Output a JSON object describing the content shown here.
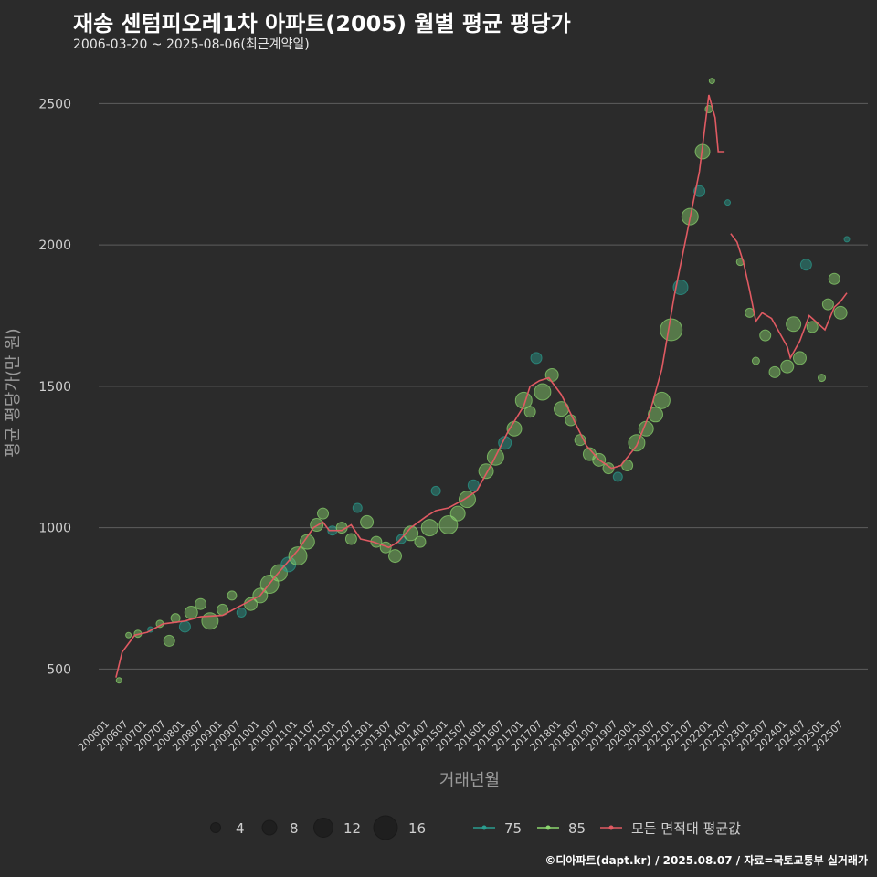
{
  "title": "재송 센텀피오레1차 아파트(2005) 월별 평균 평당가",
  "subtitle": "2006-03-20 ~ 2025-08-06(최근계약일)",
  "footer": "©디아파트(dapt.kr) / 2025.08.07 / 자료=국토교통부 실거래가",
  "colors": {
    "background": "#2b2b2b",
    "grid": "#5e5e5e",
    "s75": "#2a9d8f",
    "s85": "#8bd66e",
    "avg": "#e05a62"
  },
  "chart_data": {
    "type": "line",
    "xlabel": "거래년월",
    "ylabel": "평균 평당가(만 원)",
    "ylim": [
      330,
      2640
    ],
    "yticks": [
      500,
      1000,
      1500,
      2000,
      2500
    ],
    "x_range": [
      "2006-01",
      "2025-08"
    ],
    "xticks": [
      "200601",
      "200607",
      "200701",
      "200707",
      "200801",
      "200807",
      "200901",
      "200907",
      "201001",
      "201007",
      "201101",
      "201107",
      "201201",
      "201207",
      "201301",
      "201307",
      "201401",
      "201407",
      "201501",
      "201507",
      "201601",
      "201607",
      "201701",
      "201707",
      "201801",
      "201807",
      "201901",
      "201907",
      "202001",
      "202007",
      "202101",
      "202107",
      "202201",
      "202207",
      "202301",
      "202307",
      "202401",
      "202407",
      "202501",
      "202507"
    ],
    "legend": {
      "size_label": "",
      "sizes": [
        {
          "value": 4,
          "label": "4"
        },
        {
          "value": 8,
          "label": "8"
        },
        {
          "value": 12,
          "label": "12"
        },
        {
          "value": 16,
          "label": "16"
        }
      ],
      "series": [
        {
          "key": "s75",
          "label": "75"
        },
        {
          "key": "s85",
          "label": "85"
        },
        {
          "key": "avg",
          "label": "모든 면적대 평균값"
        }
      ]
    },
    "series": [
      {
        "name": "모든 면적대 평균값",
        "key": "avg",
        "points": [
          [
            "2006-03",
            470
          ],
          [
            "2006-05",
            560
          ],
          [
            "2006-07",
            590
          ],
          [
            "2006-09",
            620
          ],
          [
            "2007-01",
            630
          ],
          [
            "2007-06",
            660
          ],
          [
            "2008-01",
            670
          ],
          [
            "2008-06",
            685
          ],
          [
            "2009-01",
            690
          ],
          [
            "2009-06",
            720
          ],
          [
            "2010-01",
            760
          ],
          [
            "2010-06",
            830
          ],
          [
            "2011-01",
            920
          ],
          [
            "2011-06",
            1000
          ],
          [
            "2011-09",
            1020
          ],
          [
            "2011-11",
            990
          ],
          [
            "2012-03",
            990
          ],
          [
            "2012-06",
            1010
          ],
          [
            "2012-09",
            960
          ],
          [
            "2013-01",
            950
          ],
          [
            "2013-06",
            930
          ],
          [
            "2013-09",
            950
          ],
          [
            "2014-01",
            1000
          ],
          [
            "2014-06",
            1040
          ],
          [
            "2014-09",
            1060
          ],
          [
            "2015-01",
            1070
          ],
          [
            "2015-06",
            1100
          ],
          [
            "2015-10",
            1130
          ],
          [
            "2016-03",
            1230
          ],
          [
            "2016-08",
            1340
          ],
          [
            "2017-01",
            1430
          ],
          [
            "2017-03",
            1500
          ],
          [
            "2017-06",
            1520
          ],
          [
            "2017-09",
            1530
          ],
          [
            "2018-01",
            1470
          ],
          [
            "2018-05",
            1380
          ],
          [
            "2018-09",
            1290
          ],
          [
            "2019-01",
            1240
          ],
          [
            "2019-05",
            1210
          ],
          [
            "2019-08",
            1220
          ],
          [
            "2020-01",
            1290
          ],
          [
            "2020-05",
            1400
          ],
          [
            "2020-09",
            1560
          ],
          [
            "2021-01",
            1820
          ],
          [
            "2021-05",
            2040
          ],
          [
            "2021-09",
            2260
          ],
          [
            "2021-12",
            2530
          ],
          [
            "2022-02",
            2450
          ],
          [
            "2022-03",
            2330
          ],
          [
            "2022-05",
            2330
          ]
        ]
      },
      {
        "name": "모든 면적대 평균값 (2)",
        "key": "avg",
        "points": [
          [
            "2022-07",
            2040
          ],
          [
            "2022-09",
            2010
          ],
          [
            "2022-11",
            1940
          ],
          [
            "2023-01",
            1840
          ],
          [
            "2023-03",
            1730
          ],
          [
            "2023-05",
            1760
          ],
          [
            "2023-08",
            1740
          ],
          [
            "2023-10",
            1700
          ],
          [
            "2024-01",
            1640
          ],
          [
            "2024-02",
            1600
          ],
          [
            "2024-05",
            1660
          ],
          [
            "2024-08",
            1750
          ],
          [
            "2024-11",
            1720
          ],
          [
            "2025-01",
            1700
          ],
          [
            "2025-04",
            1780
          ],
          [
            "2025-06",
            1800
          ],
          [
            "2025-08",
            1830
          ]
        ]
      }
    ],
    "scatter": [
      [
        "2006-04",
        460,
        3,
        "s85"
      ],
      [
        "2006-07",
        620,
        3,
        "s85"
      ],
      [
        "2006-10",
        625,
        4,
        "s85"
      ],
      [
        "2007-02",
        640,
        3,
        "s75"
      ],
      [
        "2007-05",
        660,
        4,
        "s85"
      ],
      [
        "2007-08",
        600,
        6,
        "s85"
      ],
      [
        "2007-10",
        680,
        5,
        "s85"
      ],
      [
        "2008-01",
        650,
        6,
        "s75"
      ],
      [
        "2008-03",
        700,
        7,
        "s85"
      ],
      [
        "2008-06",
        730,
        6,
        "s85"
      ],
      [
        "2008-09",
        670,
        9,
        "s85"
      ],
      [
        "2009-01",
        710,
        6,
        "s85"
      ],
      [
        "2009-04",
        760,
        5,
        "s85"
      ],
      [
        "2009-07",
        700,
        5,
        "s75"
      ],
      [
        "2009-10",
        730,
        7,
        "s85"
      ],
      [
        "2010-01",
        760,
        8,
        "s85"
      ],
      [
        "2010-04",
        800,
        10,
        "s85"
      ],
      [
        "2010-07",
        840,
        9,
        "s85"
      ],
      [
        "2010-10",
        870,
        8,
        "s75"
      ],
      [
        "2011-01",
        900,
        10,
        "s85"
      ],
      [
        "2011-04",
        950,
        8,
        "s85"
      ],
      [
        "2011-07",
        1010,
        7,
        "s85"
      ],
      [
        "2011-09",
        1050,
        6,
        "s85"
      ],
      [
        "2011-12",
        990,
        5,
        "s75"
      ],
      [
        "2012-03",
        1000,
        6,
        "s85"
      ],
      [
        "2012-06",
        960,
        6,
        "s85"
      ],
      [
        "2012-08",
        1070,
        5,
        "s75"
      ],
      [
        "2012-11",
        1020,
        7,
        "s85"
      ],
      [
        "2013-02",
        950,
        6,
        "s85"
      ],
      [
        "2013-05",
        930,
        6,
        "s85"
      ],
      [
        "2013-08",
        900,
        7,
        "s85"
      ],
      [
        "2013-10",
        960,
        5,
        "s75"
      ],
      [
        "2014-01",
        980,
        8,
        "s85"
      ],
      [
        "2014-04",
        950,
        6,
        "s85"
      ],
      [
        "2014-07",
        1000,
        9,
        "s85"
      ],
      [
        "2014-09",
        1130,
        5,
        "s75"
      ],
      [
        "2015-01",
        1010,
        10,
        "s85"
      ],
      [
        "2015-04",
        1050,
        8,
        "s85"
      ],
      [
        "2015-07",
        1100,
        9,
        "s85"
      ],
      [
        "2015-09",
        1150,
        6,
        "s75"
      ],
      [
        "2016-01",
        1200,
        8,
        "s85"
      ],
      [
        "2016-04",
        1250,
        9,
        "s85"
      ],
      [
        "2016-07",
        1300,
        7,
        "s75"
      ],
      [
        "2016-10",
        1350,
        8,
        "s85"
      ],
      [
        "2017-01",
        1450,
        9,
        "s85"
      ],
      [
        "2017-03",
        1410,
        6,
        "s85"
      ],
      [
        "2017-05",
        1600,
        6,
        "s75"
      ],
      [
        "2017-07",
        1480,
        9,
        "s85"
      ],
      [
        "2017-10",
        1540,
        7,
        "s85"
      ],
      [
        "2018-01",
        1420,
        8,
        "s85"
      ],
      [
        "2018-04",
        1380,
        6,
        "s85"
      ],
      [
        "2018-07",
        1310,
        6,
        "s85"
      ],
      [
        "2018-10",
        1260,
        7,
        "s85"
      ],
      [
        "2019-01",
        1240,
        7,
        "s85"
      ],
      [
        "2019-04",
        1210,
        6,
        "s85"
      ],
      [
        "2019-07",
        1180,
        5,
        "s75"
      ],
      [
        "2019-10",
        1220,
        6,
        "s85"
      ],
      [
        "2020-01",
        1300,
        9,
        "s85"
      ],
      [
        "2020-04",
        1350,
        8,
        "s85"
      ],
      [
        "2020-07",
        1400,
        8,
        "s85"
      ],
      [
        "2020-09",
        1450,
        9,
        "s85"
      ],
      [
        "2020-12",
        1700,
        12,
        "s85"
      ],
      [
        "2021-03",
        1850,
        8,
        "s75"
      ],
      [
        "2021-06",
        2100,
        9,
        "s85"
      ],
      [
        "2021-09",
        2190,
        6,
        "s75"
      ],
      [
        "2021-10",
        2330,
        8,
        "s85"
      ],
      [
        "2021-12",
        2480,
        4,
        "s85"
      ],
      [
        "2022-01",
        2580,
        3,
        "s85"
      ],
      [
        "2022-06",
        2150,
        3,
        "s75"
      ],
      [
        "2022-10",
        1940,
        4,
        "s85"
      ],
      [
        "2023-01",
        1760,
        5,
        "s85"
      ],
      [
        "2023-03",
        1590,
        4,
        "s85"
      ],
      [
        "2023-06",
        1680,
        6,
        "s85"
      ],
      [
        "2023-09",
        1550,
        6,
        "s85"
      ],
      [
        "2024-01",
        1570,
        7,
        "s85"
      ],
      [
        "2024-03",
        1720,
        8,
        "s85"
      ],
      [
        "2024-05",
        1600,
        7,
        "s85"
      ],
      [
        "2024-07",
        1930,
        6,
        "s75"
      ],
      [
        "2024-09",
        1710,
        6,
        "s85"
      ],
      [
        "2024-12",
        1530,
        4,
        "s85"
      ],
      [
        "2025-02",
        1790,
        6,
        "s85"
      ],
      [
        "2025-04",
        1880,
        6,
        "s85"
      ],
      [
        "2025-06",
        1760,
        7,
        "s85"
      ],
      [
        "2025-08",
        2020,
        3,
        "s75"
      ]
    ]
  }
}
